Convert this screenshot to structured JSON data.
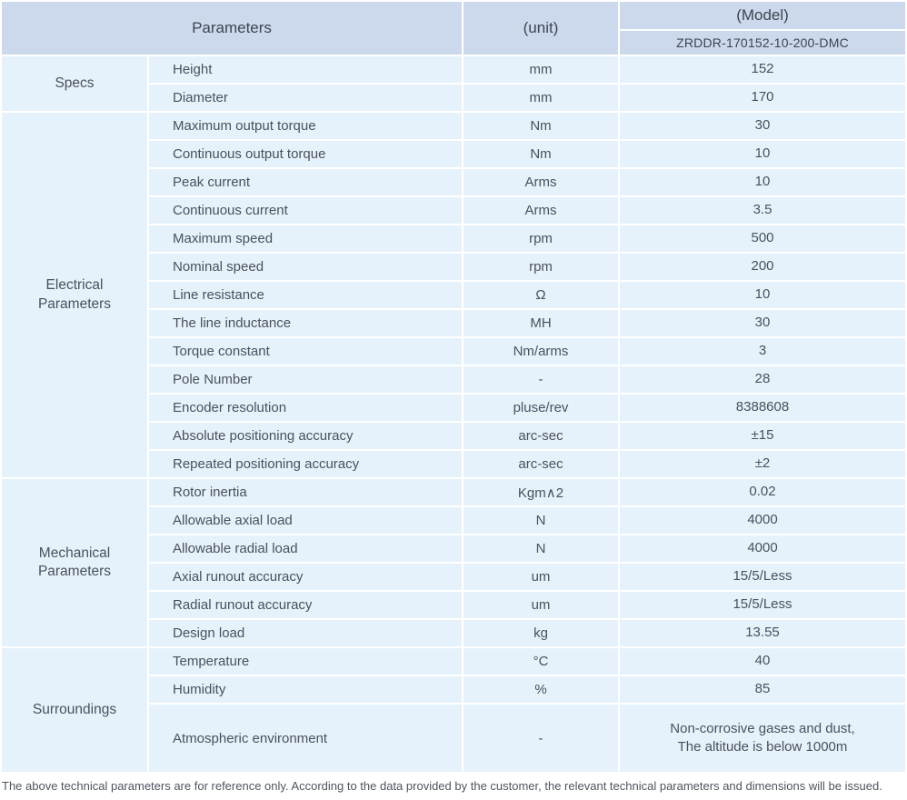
{
  "colors": {
    "header_bg": "#ccd8ec",
    "header_text": "#3e4550",
    "row_bg": "#e5f2fb",
    "body_text": "#4a515c",
    "footnote_text": "#4e5560"
  },
  "header": {
    "parameters": "Parameters",
    "unit": "(unit)",
    "model": "(Model)",
    "model_number": "ZRDDR-170152-10-200-DMC"
  },
  "sections": [
    {
      "label": "Specs",
      "rows": [
        {
          "param": "Height",
          "unit": "mm",
          "value": "152"
        },
        {
          "param": "Diameter",
          "unit": "mm",
          "value": "170"
        }
      ]
    },
    {
      "label": "Electrical Parameters",
      "rows": [
        {
          "param": "Maximum output torque",
          "unit": "Nm",
          "value": "30"
        },
        {
          "param": "Continuous output torque",
          "unit": "Nm",
          "value": "10"
        },
        {
          "param": "Peak current",
          "unit": "Arms",
          "value": "10"
        },
        {
          "param": "Continuous current",
          "unit": "Arms",
          "value": "3.5"
        },
        {
          "param": "Maximum speed",
          "unit": "rpm",
          "value": "500"
        },
        {
          "param": "Nominal speed",
          "unit": "rpm",
          "value": "200"
        },
        {
          "param": "Line resistance",
          "unit": "Ω",
          "value": "10"
        },
        {
          "param": "The line inductance",
          "unit": "MH",
          "value": "30"
        },
        {
          "param": "Torque constant",
          "unit": "Nm/arms",
          "value": "3"
        },
        {
          "param": "Pole Number",
          "unit": "-",
          "value": "28"
        },
        {
          "param": "Encoder resolution",
          "unit": "pluse/rev",
          "value": "8388608"
        },
        {
          "param": "Absolute positioning accuracy",
          "unit": "arc-sec",
          "value": "±15"
        },
        {
          "param": "Repeated positioning accuracy",
          "unit": "arc-sec",
          "value": "±2"
        }
      ]
    },
    {
      "label": "Mechanical Parameters",
      "rows": [
        {
          "param": "Rotor inertia",
          "unit": "Kgm∧2",
          "value": "0.02"
        },
        {
          "param": "Allowable axial load",
          "unit": "N",
          "value": "4000"
        },
        {
          "param": "Allowable radial load",
          "unit": "N",
          "value": "4000"
        },
        {
          "param": "Axial runout accuracy",
          "unit": "um",
          "value": "15/5/Less"
        },
        {
          "param": "Radial runout accuracy",
          "unit": "um",
          "value": "15/5/Less"
        },
        {
          "param": "Design load",
          "unit": "kg",
          "value": "13.55"
        }
      ]
    },
    {
      "label": "Surroundings",
      "rows": [
        {
          "param": "Temperature",
          "unit": "°C",
          "value": "40"
        },
        {
          "param": "Humidity",
          "unit": "%",
          "value": "85"
        },
        {
          "param": "Atmospheric environment",
          "unit": "-",
          "value": "Non-corrosive gases and dust,\nThe altitude is below 1000m",
          "tall": true
        }
      ]
    }
  ],
  "footnote": "The above technical parameters are for reference only. According to the data provided by the customer, the relevant technical parameters and dimensions will be issued."
}
